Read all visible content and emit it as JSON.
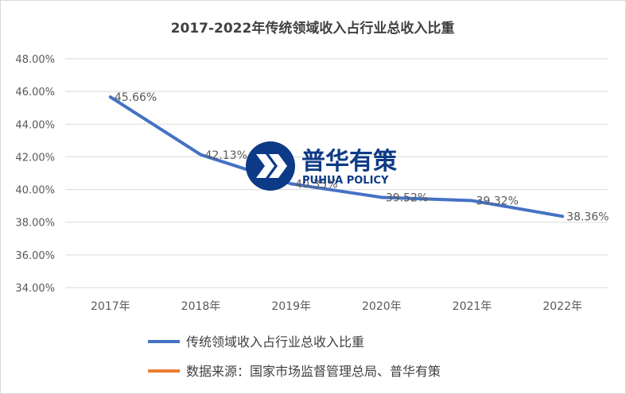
{
  "chart_data": {
    "type": "line",
    "title": "2017-2022年传统领域收入占行业总收入比重",
    "categories": [
      "2017年",
      "2018年",
      "2019年",
      "2020年",
      "2021年",
      "2022年"
    ],
    "series": [
      {
        "name": "传统领域收入占行业总收入比重",
        "values": [
          45.66,
          42.13,
          40.35,
          39.52,
          39.32,
          38.36
        ],
        "data_labels": [
          "45.66%",
          "42.13%",
          "40.35%",
          "39.52%",
          "39.32%",
          "38.36%"
        ],
        "color": "#4472c4"
      }
    ],
    "ylim": [
      34,
      48
    ],
    "yticks": [
      "34.00%",
      "36.00%",
      "38.00%",
      "40.00%",
      "42.00%",
      "44.00%",
      "46.00%",
      "48.00%"
    ],
    "grid": true,
    "legend": [
      {
        "label": "传统领域收入占行业总收入比重",
        "color": "#4472c4"
      },
      {
        "label": "数据来源：国家市场监督管理总局、普华有策",
        "color": "#ed7d31"
      }
    ],
    "legend_position": "bottom"
  },
  "watermark": {
    "text_cn": "普华有策",
    "text_en": "PUHUA POLICY",
    "color": "#0d3a86"
  }
}
